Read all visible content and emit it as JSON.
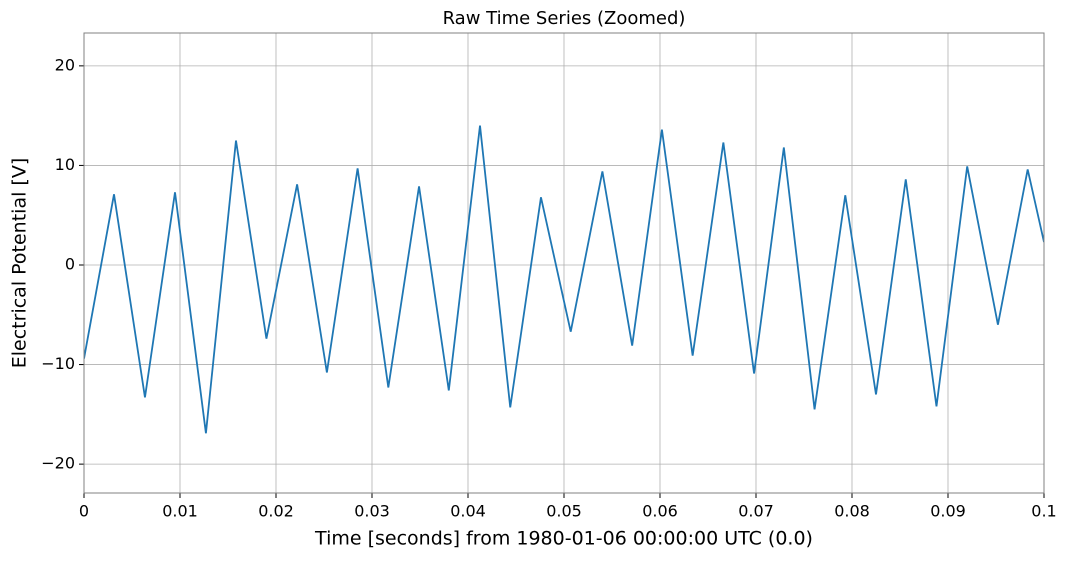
{
  "chart_data": {
    "type": "line",
    "title": "Raw Time Series (Zoomed)",
    "xlabel": "Time [seconds] from 1980-01-06 00:00:00 UTC (0.0)",
    "ylabel": "Electrical Potential [V]",
    "x": [
      0,
      0.003125,
      0.00635,
      0.00948,
      0.0127,
      0.01583,
      0.019,
      0.0222,
      0.0253,
      0.0285,
      0.0317,
      0.0349,
      0.038,
      0.04125,
      0.0444,
      0.0476,
      0.0507,
      0.054,
      0.0571,
      0.0602,
      0.0634,
      0.0666,
      0.0698,
      0.0729,
      0.0761,
      0.0793,
      0.0825,
      0.0856,
      0.0888,
      0.092,
      0.0952,
      0.0983,
      0.1
    ],
    "series": [
      {
        "name": "Electrical Potential",
        "color": "#1f77b4",
        "values": [
          -9.4,
          7.1,
          -13.3,
          7.3,
          -16.9,
          12.5,
          -7.4,
          8.1,
          -10.8,
          9.7,
          -12.3,
          7.9,
          -12.6,
          14.0,
          -14.3,
          6.8,
          -6.7,
          9.4,
          -8.1,
          13.6,
          -9.1,
          12.3,
          -10.9,
          11.8,
          -14.5,
          7.0,
          -13.0,
          8.6,
          -14.2,
          9.9,
          -6.0,
          9.6,
          2.3
        ]
      }
    ],
    "xlim": [
      0,
      0.1
    ],
    "xticks": [
      0,
      0.01,
      0.02,
      0.03,
      0.04,
      0.05,
      0.06,
      0.07,
      0.08,
      0.09,
      0.1
    ],
    "ylim": [
      -22.9,
      23.3
    ],
    "yticks": [
      {
        "value": -20,
        "label": "−20"
      },
      {
        "value": -10,
        "label": "−10"
      },
      0,
      10,
      20
    ],
    "grid": true
  }
}
